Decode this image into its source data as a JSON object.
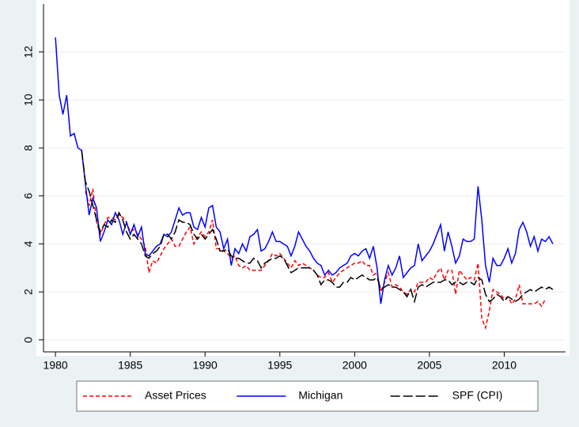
{
  "chart_data": {
    "type": "line",
    "x": [
      1980,
      1980.25,
      1980.5,
      1980.75,
      1981,
      1981.25,
      1981.5,
      1981.75,
      1982,
      1982.25,
      1982.5,
      1982.75,
      1983,
      1983.25,
      1983.5,
      1983.75,
      1984,
      1984.25,
      1984.5,
      1984.75,
      1985,
      1985.25,
      1985.5,
      1985.75,
      1986,
      1986.25,
      1986.5,
      1986.75,
      1987,
      1987.25,
      1987.5,
      1987.75,
      1988,
      1988.25,
      1988.5,
      1988.75,
      1989,
      1989.25,
      1989.5,
      1989.75,
      1990,
      1990.25,
      1990.5,
      1990.75,
      1991,
      1991.25,
      1991.5,
      1991.75,
      1992,
      1992.25,
      1992.5,
      1992.75,
      1993,
      1993.25,
      1993.5,
      1993.75,
      1994,
      1994.25,
      1994.5,
      1994.75,
      1995,
      1995.25,
      1995.5,
      1995.75,
      1996,
      1996.25,
      1996.5,
      1996.75,
      1997,
      1997.25,
      1997.5,
      1997.75,
      1998,
      1998.25,
      1998.5,
      1998.75,
      1999,
      1999.25,
      1999.5,
      1999.75,
      2000,
      2000.25,
      2000.5,
      2000.75,
      2001,
      2001.25,
      2001.5,
      2001.75,
      2002,
      2002.25,
      2002.5,
      2002.75,
      2003,
      2003.25,
      2003.5,
      2003.75,
      2004,
      2004.25,
      2004.5,
      2004.75,
      2005,
      2005.25,
      2005.5,
      2005.75,
      2006,
      2006.25,
      2006.5,
      2006.75,
      2007,
      2007.25,
      2007.5,
      2007.75,
      2008,
      2008.25,
      2008.5,
      2008.75,
      2009,
      2009.25,
      2009.5,
      2009.75,
      2010,
      2010.25,
      2010.5,
      2010.75,
      2011,
      2011.25,
      2011.5,
      2011.75,
      2012,
      2012.25,
      2012.5,
      2012.75,
      2013,
      2013.25
    ],
    "series": [
      {
        "name": "Asset Prices",
        "color": "#ff0000",
        "dash": "5,3",
        "values": [
          null,
          null,
          null,
          null,
          null,
          null,
          null,
          null,
          6.2,
          5.6,
          6.3,
          4.9,
          4.4,
          4.8,
          5.1,
          5.1,
          5.0,
          5.2,
          5.1,
          4.9,
          4.5,
          4.6,
          4.4,
          4.2,
          3.9,
          2.8,
          3.3,
          3.2,
          3.5,
          3.8,
          4.0,
          4.2,
          3.9,
          3.9,
          4.2,
          4.5,
          4.7,
          4.0,
          4.3,
          4.5,
          4.3,
          4.5,
          5.0,
          3.8,
          3.8,
          3.7,
          3.6,
          3.4,
          3.5,
          3.1,
          3.0,
          3.1,
          2.9,
          2.9,
          2.9,
          2.9,
          3.1,
          3.3,
          3.6,
          3.5,
          3.6,
          3.4,
          3.2,
          3.0,
          3.3,
          3.1,
          3.2,
          3.1,
          3.0,
          2.9,
          2.7,
          2.6,
          2.6,
          2.8,
          2.4,
          2.6,
          2.8,
          2.9,
          3.0,
          3.1,
          3.2,
          3.2,
          3.3,
          3.1,
          3.1,
          2.7,
          2.8,
          2.0,
          2.4,
          2.8,
          2.2,
          2.3,
          2.2,
          2.0,
          1.9,
          2.1,
          2.0,
          2.4,
          2.4,
          2.4,
          2.6,
          2.5,
          2.8,
          3.0,
          2.5,
          2.9,
          2.9,
          1.9,
          2.9,
          2.7,
          2.5,
          2.6,
          2.5,
          3.2,
          0.9,
          0.5,
          1.2,
          2.1,
          2.0,
          1.9,
          1.7,
          1.8,
          1.5,
          1.7,
          2.3,
          1.5,
          1.5,
          1.5,
          1.5,
          1.6,
          1.4,
          1.7,
          null,
          null
        ]
      },
      {
        "name": "Michigan",
        "color": "#0000ff",
        "dash": "none",
        "values": [
          12.6,
          10.2,
          9.4,
          10.2,
          8.5,
          8.6,
          8.0,
          7.9,
          6.5,
          5.2,
          5.9,
          5.5,
          4.1,
          4.5,
          5.0,
          4.8,
          5.3,
          5.0,
          4.4,
          4.9,
          4.4,
          4.8,
          4.3,
          4.7,
          3.6,
          3.5,
          3.7,
          3.9,
          4.0,
          4.4,
          4.3,
          4.5,
          5.0,
          5.5,
          5.2,
          5.3,
          5.3,
          4.7,
          4.6,
          5.1,
          4.7,
          5.5,
          5.6,
          4.7,
          4.5,
          3.8,
          4.2,
          3.1,
          3.8,
          3.6,
          4.0,
          3.7,
          4.3,
          4.4,
          4.6,
          3.7,
          3.8,
          4.1,
          4.5,
          4.1,
          4.1,
          4.0,
          3.9,
          3.5,
          3.9,
          4.5,
          4.2,
          3.9,
          3.7,
          3.4,
          3.2,
          3.1,
          2.7,
          2.9,
          2.7,
          2.8,
          3.0,
          3.1,
          3.2,
          3.5,
          3.6,
          3.5,
          3.7,
          3.8,
          3.4,
          3.9,
          3.0,
          1.5,
          2.5,
          3.1,
          2.7,
          3.0,
          3.5,
          2.6,
          2.8,
          3.0,
          3.1,
          4.0,
          3.3,
          3.5,
          3.7,
          4.0,
          4.4,
          4.8,
          3.7,
          4.5,
          3.9,
          3.2,
          3.5,
          4.2,
          4.1,
          4.1,
          4.2,
          6.4,
          5.0,
          3.1,
          2.4,
          3.4,
          3.1,
          3.1,
          3.4,
          3.8,
          3.2,
          3.6,
          4.6,
          4.9,
          4.5,
          3.9,
          4.3,
          3.7,
          4.2,
          4.1,
          4.3,
          4.0
        ]
      },
      {
        "name": "SPF (CPI)",
        "color": "#000000",
        "dash": "12,4",
        "values": [
          null,
          null,
          null,
          null,
          null,
          null,
          null,
          7.9,
          6.6,
          6.2,
          5.6,
          5.0,
          4.5,
          4.8,
          4.7,
          5.0,
          4.9,
          5.3,
          5.0,
          4.5,
          4.2,
          4.4,
          4.2,
          4.0,
          3.5,
          3.4,
          3.6,
          3.7,
          3.9,
          4.4,
          4.4,
          4.2,
          4.5,
          5.0,
          4.9,
          4.9,
          4.8,
          4.4,
          4.2,
          4.4,
          4.2,
          4.4,
          4.6,
          4.2,
          3.7,
          3.7,
          3.8,
          3.5,
          3.4,
          3.4,
          3.3,
          3.2,
          3.2,
          3.4,
          3.3,
          3.0,
          3.2,
          3.3,
          3.4,
          3.4,
          3.5,
          3.4,
          3.1,
          2.8,
          2.9,
          3.0,
          3.0,
          3.0,
          3.0,
          2.9,
          2.7,
          2.3,
          2.5,
          2.5,
          2.4,
          2.2,
          2.2,
          2.4,
          2.4,
          2.6,
          2.5,
          2.6,
          2.7,
          2.6,
          2.5,
          2.5,
          2.6,
          2.1,
          2.2,
          2.3,
          2.2,
          2.2,
          2.1,
          2.0,
          1.8,
          2.1,
          1.6,
          2.2,
          2.3,
          2.2,
          2.3,
          2.4,
          2.4,
          2.4,
          2.5,
          2.5,
          2.3,
          2.4,
          2.4,
          2.3,
          2.4,
          2.4,
          2.3,
          2.6,
          2.5,
          1.9,
          1.6,
          1.7,
          1.9,
          1.8,
          1.6,
          1.8,
          1.7,
          1.6,
          1.7,
          1.9,
          2.0,
          2.1,
          2.0,
          2.1,
          2.2,
          2.1,
          2.2,
          2.1
        ]
      }
    ],
    "xlim": [
      1979.2,
      2014.1
    ],
    "ylim": [
      -0.5,
      14
    ],
    "xticks": [
      1980,
      1985,
      1990,
      1995,
      2000,
      2005,
      2010
    ],
    "yticks": [
      0,
      2,
      4,
      6,
      8,
      10,
      12
    ],
    "grid": true,
    "legend": "bottom"
  }
}
